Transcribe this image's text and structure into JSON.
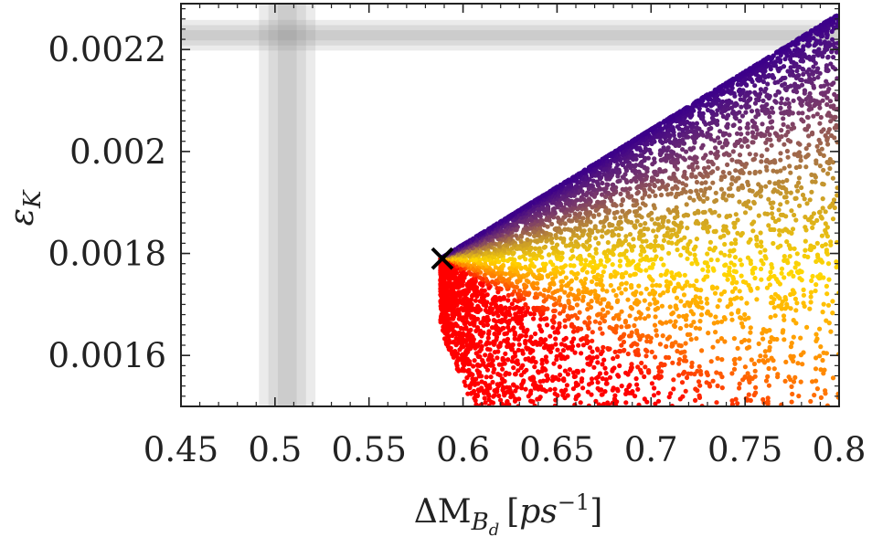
{
  "chart_data": {
    "type": "scatter",
    "xlabel": "ΔM_{B_d} [ps^{-1}]",
    "ylabel": "ε_K",
    "xlim": [
      0.45,
      0.8
    ],
    "ylim": [
      0.0015,
      0.00229
    ],
    "x_ticks": [
      0.45,
      0.5,
      0.55,
      0.6,
      0.65,
      0.7,
      0.75,
      0.8
    ],
    "x_tick_labels": [
      "0.45",
      "0.5",
      "0.55",
      "0.6",
      "0.65",
      "0.7",
      "0.75",
      "0.8"
    ],
    "y_ticks": [
      0.0016,
      0.0018,
      0.002,
      0.0022
    ],
    "y_tick_labels": [
      "0.0016",
      "0.0018",
      "0.002",
      "0.0022"
    ],
    "grid": false,
    "legend": "none",
    "colormap": [
      "#ff0000",
      "#ff7f00",
      "#ffd700",
      "#c89a2a",
      "#7a3a6a",
      "#3c008a"
    ],
    "experimental_bands": {
      "x_center": 0.5065,
      "x_half_widths": [
        0.005,
        0.01,
        0.015
      ],
      "y_center": 0.002228,
      "y_half_widths": [
        1e-05,
        2e-05,
        3e-05
      ],
      "color": "#808080"
    },
    "reference_point": {
      "x": 0.589,
      "y": 0.00179,
      "marker": "x",
      "color": "#000000"
    },
    "scatter_region": {
      "apex": [
        0.588,
        0.00179
      ],
      "upper_edge_end": [
        0.8,
        0.00227
      ],
      "lower_bound_y": 0.0015,
      "point_count": 6000
    }
  }
}
